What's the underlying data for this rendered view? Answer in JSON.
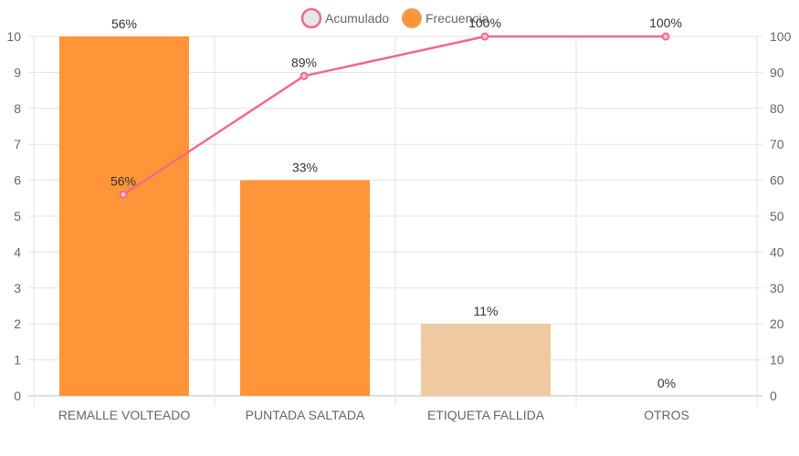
{
  "chart_data": {
    "type": "bar",
    "categories": [
      "REMALLE VOLTEADO",
      "PUNTADA SALTADA",
      "ETIQUETA FALLIDA",
      "OTROS"
    ],
    "series": [
      {
        "name": "Frecuencia",
        "type": "bar",
        "axis": "left",
        "values": [
          10,
          6,
          2,
          0
        ],
        "labels": [
          "56%",
          "33%",
          "11%",
          "0%"
        ],
        "colors": [
          "#ff9538",
          "#ff9538",
          "#efc9a0",
          "#ff9538"
        ]
      },
      {
        "name": "Acumulado",
        "type": "line",
        "axis": "right",
        "values": [
          56,
          89,
          100,
          100
        ],
        "labels": [
          "56%",
          "89%",
          "100%",
          "100%"
        ],
        "color": "#f0698e"
      }
    ],
    "y_left": {
      "min": 0,
      "max": 10,
      "step": 1
    },
    "y_right": {
      "min": 0,
      "max": 100,
      "step": 10
    },
    "legend": {
      "position": "top",
      "items": [
        {
          "label": "Acumulado",
          "fill": "#e6e6e6",
          "stroke": "#f0698e"
        },
        {
          "label": "Frecuencia",
          "fill": "#ff9538",
          "stroke": "#e9a05a"
        }
      ]
    },
    "grid": true,
    "colors": {
      "grid": "#e3e3e3",
      "axis_text": "#666666",
      "label_text": "#333333"
    }
  }
}
